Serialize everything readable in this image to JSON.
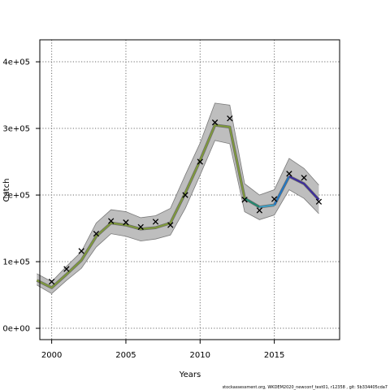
{
  "chart_data": {
    "type": "line",
    "xlabel": "Years",
    "ylabel": "Catch",
    "xlim": [
      1999.2,
      2019.4
    ],
    "ylim": [
      -17000,
      433000
    ],
    "xticks": [
      2000,
      2005,
      2010,
      2015
    ],
    "xtick_labels": [
      "2000",
      "2005",
      "2010",
      "2015"
    ],
    "yticks": [
      0,
      100000,
      200000,
      300000,
      400000
    ],
    "ytick_labels": [
      "0e+00",
      "1e+05",
      "2e+05",
      "3e+05",
      "4e+05"
    ],
    "grid": true,
    "footer": "stockassessment.org, WKDEM2020_newconf_test01, r12358 , git: 5b334405cda7",
    "band_color": "#bebebe",
    "x": [
      1999,
      2000,
      2001,
      2002,
      2003,
      2004,
      2005,
      2006,
      2007,
      2008,
      2009,
      2010,
      2011,
      2012,
      2013,
      2014,
      2015,
      2016,
      2017,
      2018
    ],
    "band_lower": [
      65000,
      52000,
      72000,
      90000,
      122000,
      142000,
      138000,
      131000,
      134000,
      140000,
      180000,
      230000,
      282000,
      277000,
      175000,
      163000,
      170000,
      208000,
      195000,
      172000
    ],
    "band_upper": [
      82000,
      70000,
      93000,
      115000,
      158000,
      178000,
      175000,
      166000,
      169000,
      180000,
      230000,
      278000,
      338000,
      335000,
      217000,
      200000,
      208000,
      255000,
      240000,
      215000
    ],
    "fit_line": [
      {
        "from": 1999,
        "to": 2013,
        "color": "#7f9a3a",
        "points": [
          [
            1999,
            72000
          ],
          [
            2000,
            61000
          ],
          [
            2001,
            81000
          ],
          [
            2002,
            102000
          ],
          [
            2003,
            138000
          ],
          [
            2004,
            158000
          ],
          [
            2005,
            155000
          ],
          [
            2006,
            149000
          ],
          [
            2007,
            151000
          ],
          [
            2008,
            158000
          ],
          [
            2009,
            203000
          ],
          [
            2010,
            252000
          ],
          [
            2011,
            305000
          ],
          [
            2012,
            302000
          ],
          [
            2013,
            195000
          ]
        ]
      },
      {
        "from": 2013,
        "to": 2014,
        "color": "#1f8a70",
        "points": [
          [
            2013,
            195000
          ],
          [
            2014,
            182000
          ]
        ]
      },
      {
        "from": 2014,
        "to": 2015,
        "color": "#3aa0c8",
        "points": [
          [
            2014,
            182000
          ],
          [
            2015,
            185000
          ]
        ]
      },
      {
        "from": 2015,
        "to": 2016,
        "color": "#1f78c8",
        "points": [
          [
            2015,
            185000
          ],
          [
            2016,
            228000
          ]
        ]
      },
      {
        "from": 2016,
        "to": 2018,
        "color": "#3b2aa0",
        "points": [
          [
            2016,
            228000
          ],
          [
            2017,
            217000
          ],
          [
            2018,
            193000
          ]
        ]
      }
    ],
    "observed": {
      "marker": "x",
      "color": "#000000",
      "points": [
        [
          2000,
          70000
        ],
        [
          2001,
          89000
        ],
        [
          2002,
          116000
        ],
        [
          2003,
          142000
        ],
        [
          2004,
          161000
        ],
        [
          2005,
          159000
        ],
        [
          2006,
          152000
        ],
        [
          2007,
          160000
        ],
        [
          2008,
          155000
        ],
        [
          2009,
          200000
        ],
        [
          2010,
          250000
        ],
        [
          2011,
          309000
        ],
        [
          2012,
          315000
        ],
        [
          2013,
          193000
        ],
        [
          2014,
          177000
        ],
        [
          2015,
          194000
        ],
        [
          2016,
          232000
        ],
        [
          2017,
          226000
        ],
        [
          2018,
          190000
        ]
      ]
    }
  }
}
